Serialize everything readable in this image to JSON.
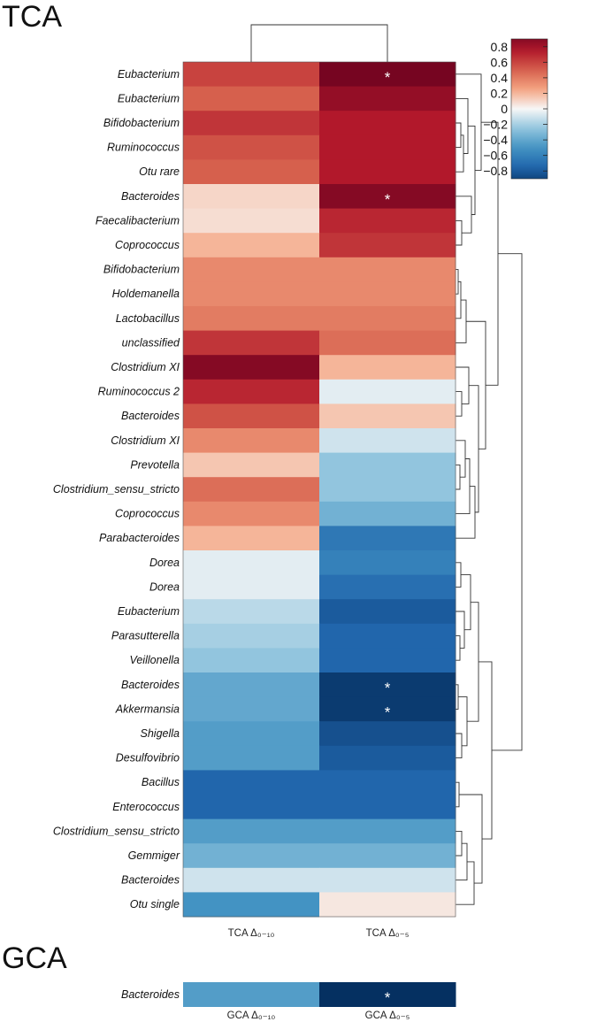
{
  "chart_data": [
    {
      "type": "heatmap",
      "title": "TCA",
      "columns": [
        "TCA Δ₀₋₁₀",
        "TCA Δ₀₋₅"
      ],
      "rows": [
        "Eubacterium",
        "Eubacterium",
        "Bifidobacterium",
        "Ruminococcus",
        "Otu rare",
        "Bacteroides",
        "Faecalibacterium",
        "Coprococcus",
        "Bifidobacterium",
        "Holdemanella",
        "Lactobacillus",
        "unclassified",
        "Clostridium XI",
        "Ruminococcus 2",
        "Bacteroides",
        "Clostridium XI",
        "Prevotella",
        "Clostridium_sensu_stricto",
        "Coprococcus",
        "Parabacteroides",
        "Dorea",
        "Dorea",
        "Eubacterium",
        "Parasutterella",
        "Veillonella",
        "Bacteroides",
        "Akkermansia",
        "Shigella",
        "Desulfovibrio",
        "Bacillus",
        "Enterococcus",
        "Clostridium_sensu_stricto",
        "Gemmiger",
        "Bacteroides",
        "Otu single"
      ],
      "values": [
        [
          0.6,
          0.95
        ],
        [
          0.5,
          0.85
        ],
        [
          0.65,
          0.75
        ],
        [
          0.55,
          0.75
        ],
        [
          0.5,
          0.75
        ],
        [
          0.1,
          0.9
        ],
        [
          0.08,
          0.7
        ],
        [
          0.2,
          0.65
        ],
        [
          0.35,
          0.35
        ],
        [
          0.35,
          0.35
        ],
        [
          0.4,
          0.4
        ],
        [
          0.65,
          0.45
        ],
        [
          0.9,
          0.2
        ],
        [
          0.7,
          -0.05
        ],
        [
          0.55,
          0.15
        ],
        [
          0.35,
          -0.1
        ],
        [
          0.15,
          -0.25
        ],
        [
          0.45,
          -0.25
        ],
        [
          0.35,
          -0.35
        ],
        [
          0.2,
          -0.65
        ],
        [
          -0.05,
          -0.6
        ],
        [
          -0.05,
          -0.7
        ],
        [
          -0.15,
          -0.8
        ],
        [
          -0.2,
          -0.75
        ],
        [
          -0.25,
          -0.75
        ],
        [
          -0.4,
          -0.95
        ],
        [
          -0.4,
          -0.95
        ],
        [
          -0.45,
          -0.85
        ],
        [
          -0.45,
          -0.8
        ],
        [
          -0.75,
          -0.75
        ],
        [
          -0.75,
          -0.75
        ],
        [
          -0.45,
          -0.45
        ],
        [
          -0.35,
          -0.35
        ],
        [
          -0.1,
          -0.1
        ],
        [
          -0.5,
          0.05
        ]
      ],
      "significant": [
        [
          0,
          1
        ],
        [
          5,
          1
        ],
        [
          25,
          1
        ],
        [
          26,
          1
        ]
      ],
      "significance_marker": "*",
      "colorbar": {
        "range": [
          -0.9,
          0.9
        ],
        "ticks": [
          "0.8",
          "0.6",
          "0.4",
          "0.2",
          "0",
          "−0.2",
          "−0.4",
          "−0.6",
          "−0.8"
        ],
        "tick_values": [
          0.8,
          0.6,
          0.4,
          0.2,
          0,
          -0.2,
          -0.4,
          -0.6,
          -0.8
        ],
        "colormap": "RdBu_r",
        "placement": "top-right"
      },
      "column_dendrogram": true,
      "row_dendrogram": true
    },
    {
      "type": "heatmap",
      "title": "GCA",
      "columns": [
        "GCA Δ₀₋₁₀",
        "GCA Δ₀₋₅"
      ],
      "rows": [
        "Bacteroides"
      ],
      "values": [
        [
          -0.45,
          -1.0
        ]
      ],
      "significant": [
        [
          0,
          1
        ]
      ],
      "significance_marker": "*"
    }
  ]
}
